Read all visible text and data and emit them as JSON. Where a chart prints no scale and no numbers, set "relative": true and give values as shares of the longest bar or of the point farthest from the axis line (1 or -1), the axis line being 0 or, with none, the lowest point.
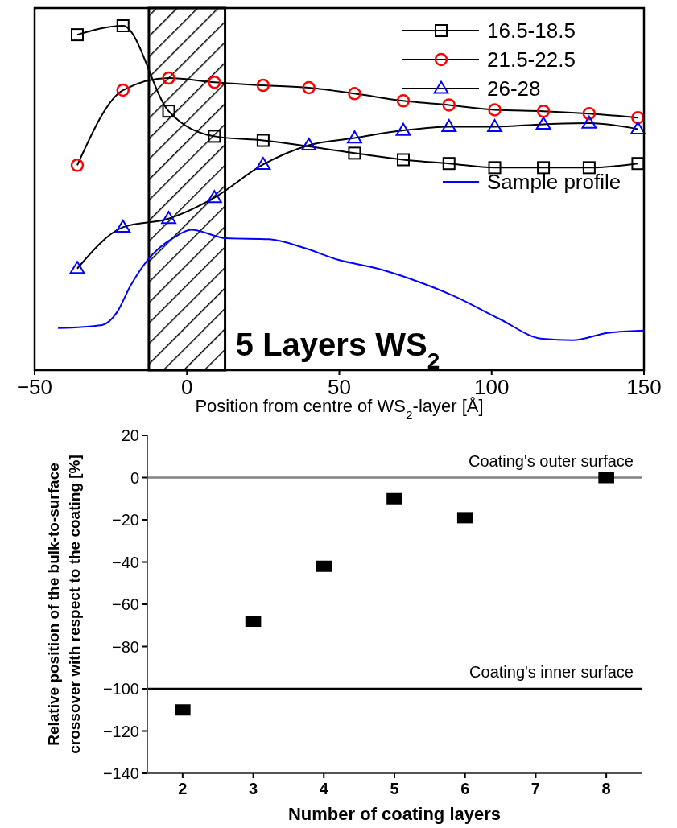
{
  "chart_data": [
    {
      "type": "line",
      "relative": true,
      "xlabel": "Position from centre of WS$_{2}$-layer [Å]",
      "xlim": [
        -50,
        150
      ],
      "xticks": [
        -50,
        0,
        50,
        100,
        150
      ],
      "tick_labels": "x",
      "legend": "top right",
      "annotations": [
        "5 Layers WS$_{2}$"
      ],
      "bands": [
        {
          "axis": "x",
          "from": -12.5,
          "to": 12.5,
          "color": "#000000"
        }
      ],
      "x": [
        -36,
        -21,
        -6,
        9,
        25,
        40,
        55,
        71,
        86,
        101,
        117,
        132,
        148
      ],
      "series": [
        {
          "name": "16.5-18.5",
          "color": "#000000",
          "marker": "square",
          "values": [
            0.974,
            1,
            0.752,
            0.679,
            0.667,
            null,
            0.63,
            0.611,
            0.6,
            0.588,
            0.588,
            0.588,
            0.6
          ]
        },
        {
          "name": "21.5-22.5",
          "color": "#ff0000",
          "marker": "circle",
          "values": [
            0.595,
            0.813,
            0.848,
            0.836,
            0.827,
            0.82,
            0.803,
            0.782,
            0.77,
            0.756,
            0.752,
            0.745,
            0.733
          ]
        },
        {
          "name": "26-28",
          "color": "#0000ff",
          "marker": "triangle",
          "values": [
            0.295,
            0.415,
            0.44,
            0.501,
            0.597,
            0.653,
            0.674,
            0.696,
            0.707,
            0.707,
            0.714,
            0.717,
            0.7
          ]
        },
        {
          "name": "Sample profile",
          "color": "#0000ff",
          "marker": "none",
          "x": [
            -42.3,
            -27.8,
            -22.9,
            -18.6,
            -12.9,
            -4.3,
            1.4,
            12.8,
            27,
            38.4,
            49.8,
            62.6,
            74,
            88.2,
            102.5,
            116.7,
            126.6,
            138,
            150
          ],
          "values": [
            0.122,
            0.131,
            0.169,
            0.244,
            0.32,
            0.385,
            0.408,
            0.383,
            0.38,
            0.355,
            0.32,
            0.295,
            0.263,
            0.213,
            0.149,
            0.091,
            0.087,
            0.108,
            0.115
          ]
        }
      ]
    },
    {
      "type": "scatter",
      "xlabel": "Number of coating layers",
      "ylabel": "Relative position of the bulk-to-surface\ncrossover with respect to the coating [%]",
      "xlim": [
        1.5,
        8.5
      ],
      "xticks": [
        2,
        3,
        4,
        5,
        6,
        7,
        8
      ],
      "ylim": [
        -140,
        20
      ],
      "yticks": [
        -140,
        -120,
        -100,
        -80,
        -60,
        -40,
        -20,
        0,
        20
      ],
      "legend": false,
      "marker": "square",
      "x": [
        2,
        3,
        4,
        5,
        6,
        8
      ],
      "series": [
        {
          "color": "#000000",
          "values": [
            -110,
            -68,
            -42,
            -10,
            -19,
            0
          ]
        }
      ],
      "ref_lines": [
        {
          "axis": "y",
          "value": 0,
          "label": "Coating's outer surface",
          "color": "#808080"
        },
        {
          "axis": "y",
          "value": -100,
          "label": "Coating's inner surface",
          "color": "#000000"
        }
      ]
    }
  ]
}
